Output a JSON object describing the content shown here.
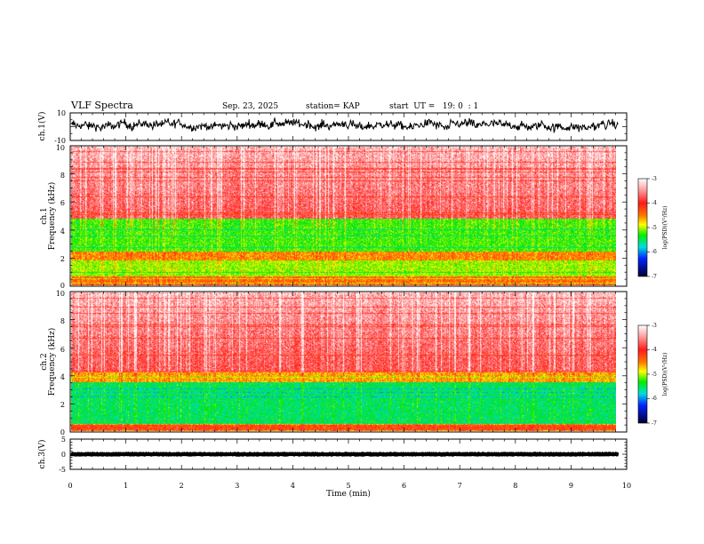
{
  "header": {
    "title": "VLF Spectra",
    "date": "Sep. 23, 2025",
    "station": "station= KAP",
    "start": "start  UT =   19: 0  : 1"
  },
  "chart_data": [
    {
      "type": "line",
      "name": "ch1-waveform",
      "ylabel": "ch.1(V)",
      "ylim": [
        -10,
        10
      ],
      "yticks": [
        "10",
        "-10"
      ],
      "xlim": [
        0,
        10
      ],
      "mean": 1,
      "amplitude": 3.5,
      "data_end_min": 9.85
    },
    {
      "type": "heatmap",
      "name": "ch1-spectrogram",
      "ylabel": "Frequency  (kHz)",
      "sublabel": "ch.1",
      "ylim": [
        0,
        10
      ],
      "yticks": [
        "0",
        "2",
        "4",
        "6",
        "8",
        "10"
      ],
      "xlim": [
        0,
        10
      ],
      "data_end_min": 9.85,
      "zlim": [
        -7,
        -3
      ],
      "bands": [
        [
          0,
          0.6,
          -4.2
        ],
        [
          0.6,
          1.8,
          -4.8
        ],
        [
          1.8,
          2.4,
          -4.3
        ],
        [
          2.4,
          4.8,
          -5.0
        ],
        [
          4.8,
          10,
          -3.6
        ]
      ],
      "colorbar": {
        "label": "log(PSD)(V²/Hz)",
        "ticks": [
          "-3",
          "-4",
          "-5",
          "-6",
          "-7"
        ]
      }
    },
    {
      "type": "heatmap",
      "name": "ch2-spectrogram",
      "ylabel": "Frequency  (kHz)",
      "sublabel": "ch.2",
      "ylim": [
        0,
        10
      ],
      "yticks": [
        "0",
        "2",
        "4",
        "6",
        "8",
        "10"
      ],
      "xlim": [
        0,
        10
      ],
      "data_end_min": 9.85,
      "zlim": [
        -7,
        -3
      ],
      "bands": [
        [
          0,
          0.5,
          -4.0
        ],
        [
          0.5,
          3.5,
          -5.3
        ],
        [
          3.5,
          4.2,
          -4.4
        ],
        [
          4.2,
          10,
          -3.6
        ]
      ],
      "colorbar": {
        "label": "log(PSD)(V²/Hz)",
        "ticks": [
          "-3",
          "-4",
          "-5",
          "-6",
          "-7"
        ]
      }
    },
    {
      "type": "line",
      "name": "ch3-waveform",
      "ylabel": "ch.3(V)",
      "ylim": [
        -5,
        5
      ],
      "yticks": [
        "5",
        "0",
        "-5"
      ],
      "xlim": [
        0,
        10
      ],
      "mean": 0,
      "amplitude": 0.8,
      "data_end_min": 9.85
    }
  ],
  "xaxis": {
    "label": "Time  (min)",
    "ticks": [
      "0",
      "1",
      "2",
      "3",
      "4",
      "5",
      "6",
      "7",
      "8",
      "9",
      "10"
    ]
  },
  "colors": {
    "axis": "#000000",
    "background": "#ffffff"
  }
}
